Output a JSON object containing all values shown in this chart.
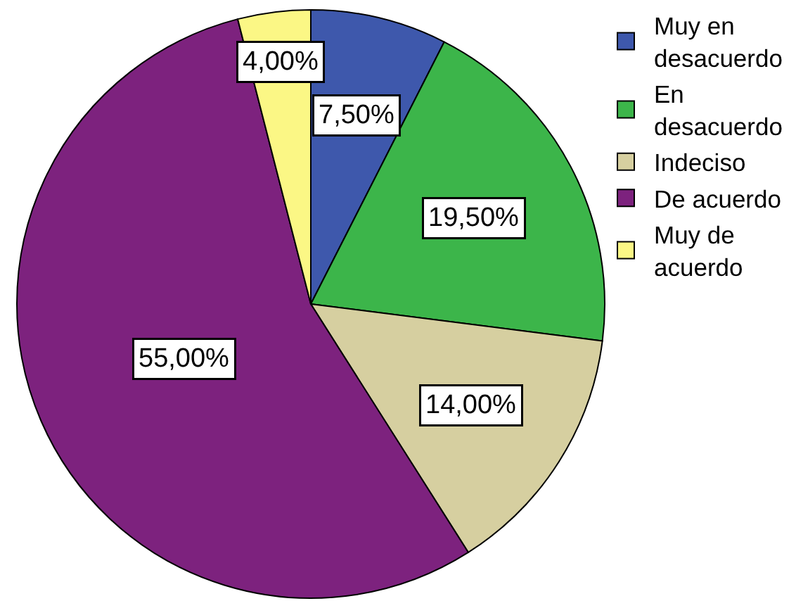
{
  "chart_data": {
    "type": "pie",
    "categories": [
      "Muy en desacuerdo",
      "En desacuerdo",
      "Indeciso",
      "De acuerdo",
      "Muy de acuerdo"
    ],
    "values": [
      7.5,
      19.5,
      14,
      55,
      4
    ],
    "value_labels": [
      "7,50%",
      "19,50%",
      "14,00%",
      "55,00%",
      "4,00%"
    ],
    "colors": [
      "#3e58ac",
      "#3cb54a",
      "#d6cfa0",
      "#7d227e",
      "#fbf785"
    ],
    "legend": "top right"
  }
}
